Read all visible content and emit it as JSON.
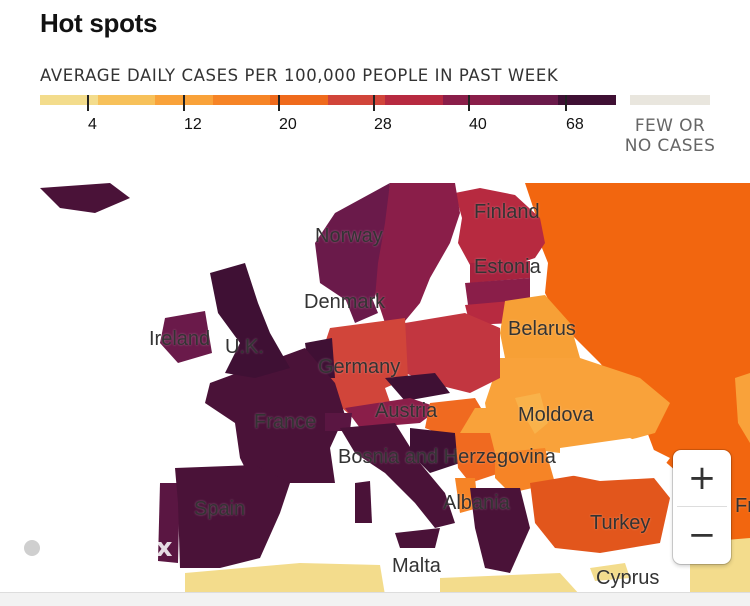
{
  "title": "Hot spots",
  "legend": {
    "label": "AVERAGE DAILY CASES PER 100,000 PEOPLE IN PAST WEEK",
    "colors": [
      "#f3dc8c",
      "#f7c15a",
      "#f9a23a",
      "#f68426",
      "#ef6a1c",
      "#d1453a",
      "#b72a40",
      "#8a1e49",
      "#6a1a4a",
      "#3f1034"
    ],
    "ticks": [
      "4",
      "12",
      "20",
      "28",
      "40",
      "68"
    ],
    "no_data_color": "#e9e6de",
    "no_data_label": "FEW OR NO CASES"
  },
  "map": {
    "water_color": "#ffffff",
    "countries": [
      {
        "name": "Finland",
        "color": "#b72a40"
      },
      {
        "name": "Norway",
        "color": "#6a1a4a"
      },
      {
        "name": "Estonia",
        "color": "#a7233f"
      },
      {
        "name": "Denmark",
        "color": "#6a1a4a"
      },
      {
        "name": "Ireland",
        "color": "#6a1a4a"
      },
      {
        "name": "U.K.",
        "color": "#3f1034"
      },
      {
        "name": "Belarus",
        "color": "#f7a036"
      },
      {
        "name": "Germany",
        "color": "#d1453a"
      },
      {
        "name": "Austria",
        "color": "#8a1e49"
      },
      {
        "name": "Moldova",
        "color": "#f9b24a"
      },
      {
        "name": "France",
        "color": "#4a1238"
      },
      {
        "name": "Bosnia and Herzegovina",
        "color": "#3f1034"
      },
      {
        "name": "Albania",
        "color": "#f68426"
      },
      {
        "name": "Spain",
        "color": "#4a1238"
      },
      {
        "name": "Turkey",
        "color": "#ef6a1c"
      },
      {
        "name": "Malta",
        "color": "#f3dc8c"
      },
      {
        "name": "Cyprus",
        "color": "#f3dc8c"
      }
    ],
    "edge_label": "Fra"
  },
  "controls": {
    "zoom_in": "+",
    "zoom_out": "−",
    "logo_text": "mapbox"
  }
}
